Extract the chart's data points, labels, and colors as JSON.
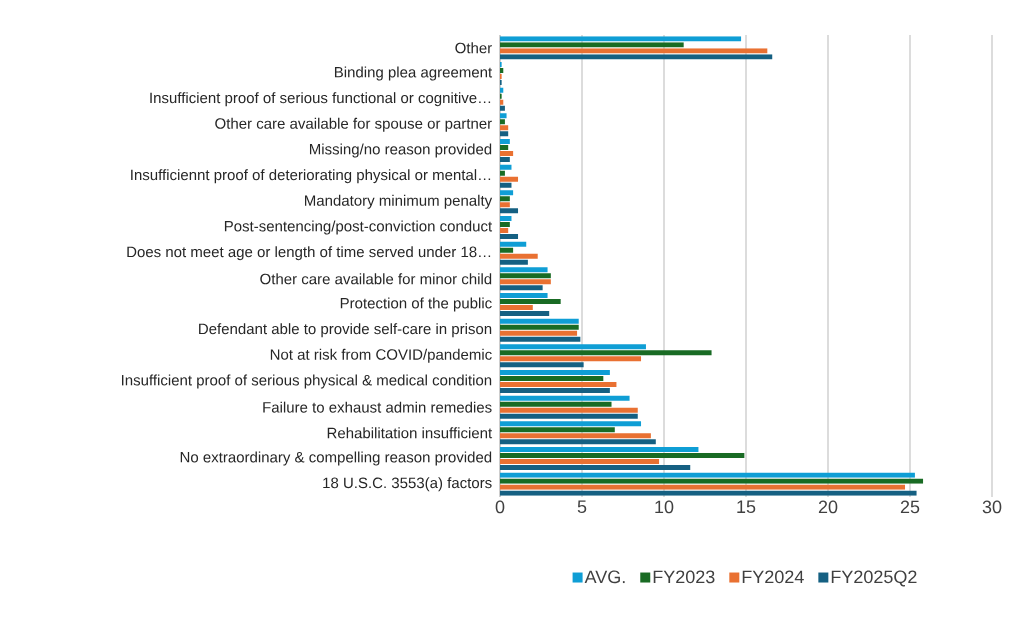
{
  "chart_data": {
    "type": "bar",
    "orientation": "horizontal",
    "categories": [
      "Other",
      "Binding plea agreement",
      "Insufficient proof of serious functional or cognitive…",
      "Other care available for spouse or partner",
      "Missing/no reason provided",
      "Insufficiennt proof of deteriorating physical or mental…",
      "Mandatory minimum penalty",
      "Post-sentencing/post-conviction conduct",
      "Does not meet age or length of time served under 18…",
      "Other care available for minor child",
      "Protection of the public",
      "Defendant able to provide self-care in prison",
      "Not at risk from COVID/pandemic",
      "Insufficient proof of serious physical & medical condition",
      "Failure to exhaust admin remedies",
      "Rehabilitation insufficient",
      "No extraordinary & compelling reason provided",
      "18 U.S.C. 3553(a) factors"
    ],
    "series": [
      {
        "name": "AVG.",
        "color": "#0f9ed5",
        "values": [
          14.7,
          0.1,
          0.2,
          0.4,
          0.6,
          0.7,
          0.8,
          0.7,
          1.6,
          2.9,
          2.9,
          4.8,
          8.9,
          6.7,
          7.9,
          8.6,
          12.1,
          25.3
        ]
      },
      {
        "name": "FY2023",
        "color": "#196b24",
        "values": [
          11.2,
          0.2,
          0.1,
          0.3,
          0.5,
          0.3,
          0.6,
          0.6,
          0.8,
          3.1,
          3.7,
          4.8,
          12.9,
          6.3,
          6.8,
          7.0,
          14.9,
          25.8
        ]
      },
      {
        "name": "FY2024",
        "color": "#e97132",
        "values": [
          16.3,
          0.1,
          0.2,
          0.5,
          0.8,
          1.1,
          0.6,
          0.5,
          2.3,
          3.1,
          2.0,
          4.7,
          8.6,
          7.1,
          8.4,
          9.2,
          9.7,
          24.7
        ]
      },
      {
        "name": "FY2025Q2",
        "color": "#156082",
        "values": [
          16.6,
          0.1,
          0.3,
          0.5,
          0.6,
          0.7,
          1.1,
          1.1,
          1.7,
          2.6,
          3.0,
          4.9,
          5.1,
          6.7,
          8.4,
          9.5,
          11.6,
          25.4
        ]
      }
    ],
    "xlim": [
      0,
      30
    ],
    "xticks": [
      0,
      5,
      10,
      15,
      20,
      25,
      30
    ],
    "grid": "x",
    "legend": "bottom"
  }
}
